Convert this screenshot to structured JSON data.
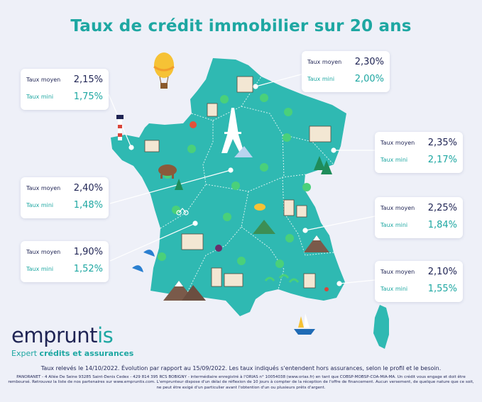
{
  "title": "Taux de crédit immobilier sur 20 ans",
  "cards": {
    "bretagne": {
      "moy_label": "Taux moyen",
      "moy": "2,15%",
      "min_label": "Taux mini",
      "min": "1,75%"
    },
    "nord": {
      "moy_label": "Taux moyen",
      "moy": "2,30%",
      "min_label": "Taux mini",
      "min": "2,00%"
    },
    "est": {
      "moy_label": "Taux moyen",
      "moy": "2,35%",
      "min_label": "Taux mini",
      "min": "2,17%"
    },
    "ouest": {
      "moy_label": "Taux moyen",
      "moy": "2,40%",
      "min_label": "Taux mini",
      "min": "1,48%"
    },
    "rhone_alpes": {
      "moy_label": "Taux moyen",
      "moy": "2,25%",
      "min_label": "Taux mini",
      "min": "1,84%"
    },
    "sud_ouest": {
      "moy_label": "Taux moyen",
      "moy": "1,90%",
      "min_label": "Taux mini",
      "min": "1,52%"
    },
    "mediterranee": {
      "moy_label": "Taux moyen",
      "moy": "2,10%",
      "min_label": "Taux mini",
      "min": "1,55%"
    }
  },
  "logo": {
    "brand_main": "emprunt",
    "brand_accent": "is",
    "tagline_light": "Expert ",
    "tagline_bold": "crédits et assurances"
  },
  "footnote": "Taux relevés le 14/10/2022. Évolution par rapport au 15/09/2022. Les taux indiqués s'entendent hors assurances, selon le profil et le besoin.",
  "legal": "PANORANET - 4 Allée De Seine 93285 Saint-Denis Cedex - 429 814 395 RCS BOBIGNY - intermédiaire enregistré à l'ORIAS n° 10054038 (www.orias.fr) en tant que COBSP-MOBSP-COA-MIA-MA. Un crédit vous engage et doit être remboursé. Retrouvez la liste de nos partenaires sur www.empruntis.com. L'emprunteur dispose d'un délai de réflexion de 10 jours à compter de la réception de l'offre de financement. Aucun versement, de quelque nature que ce soit, ne peut être exigé d'un particulier avant l'obtention d'un ou plusieurs prêts d'argent.",
  "colors": {
    "map": "#2fb9b2",
    "navy": "#1f2454",
    "teal": "#1ea7a2",
    "background": "#eef0f8"
  }
}
